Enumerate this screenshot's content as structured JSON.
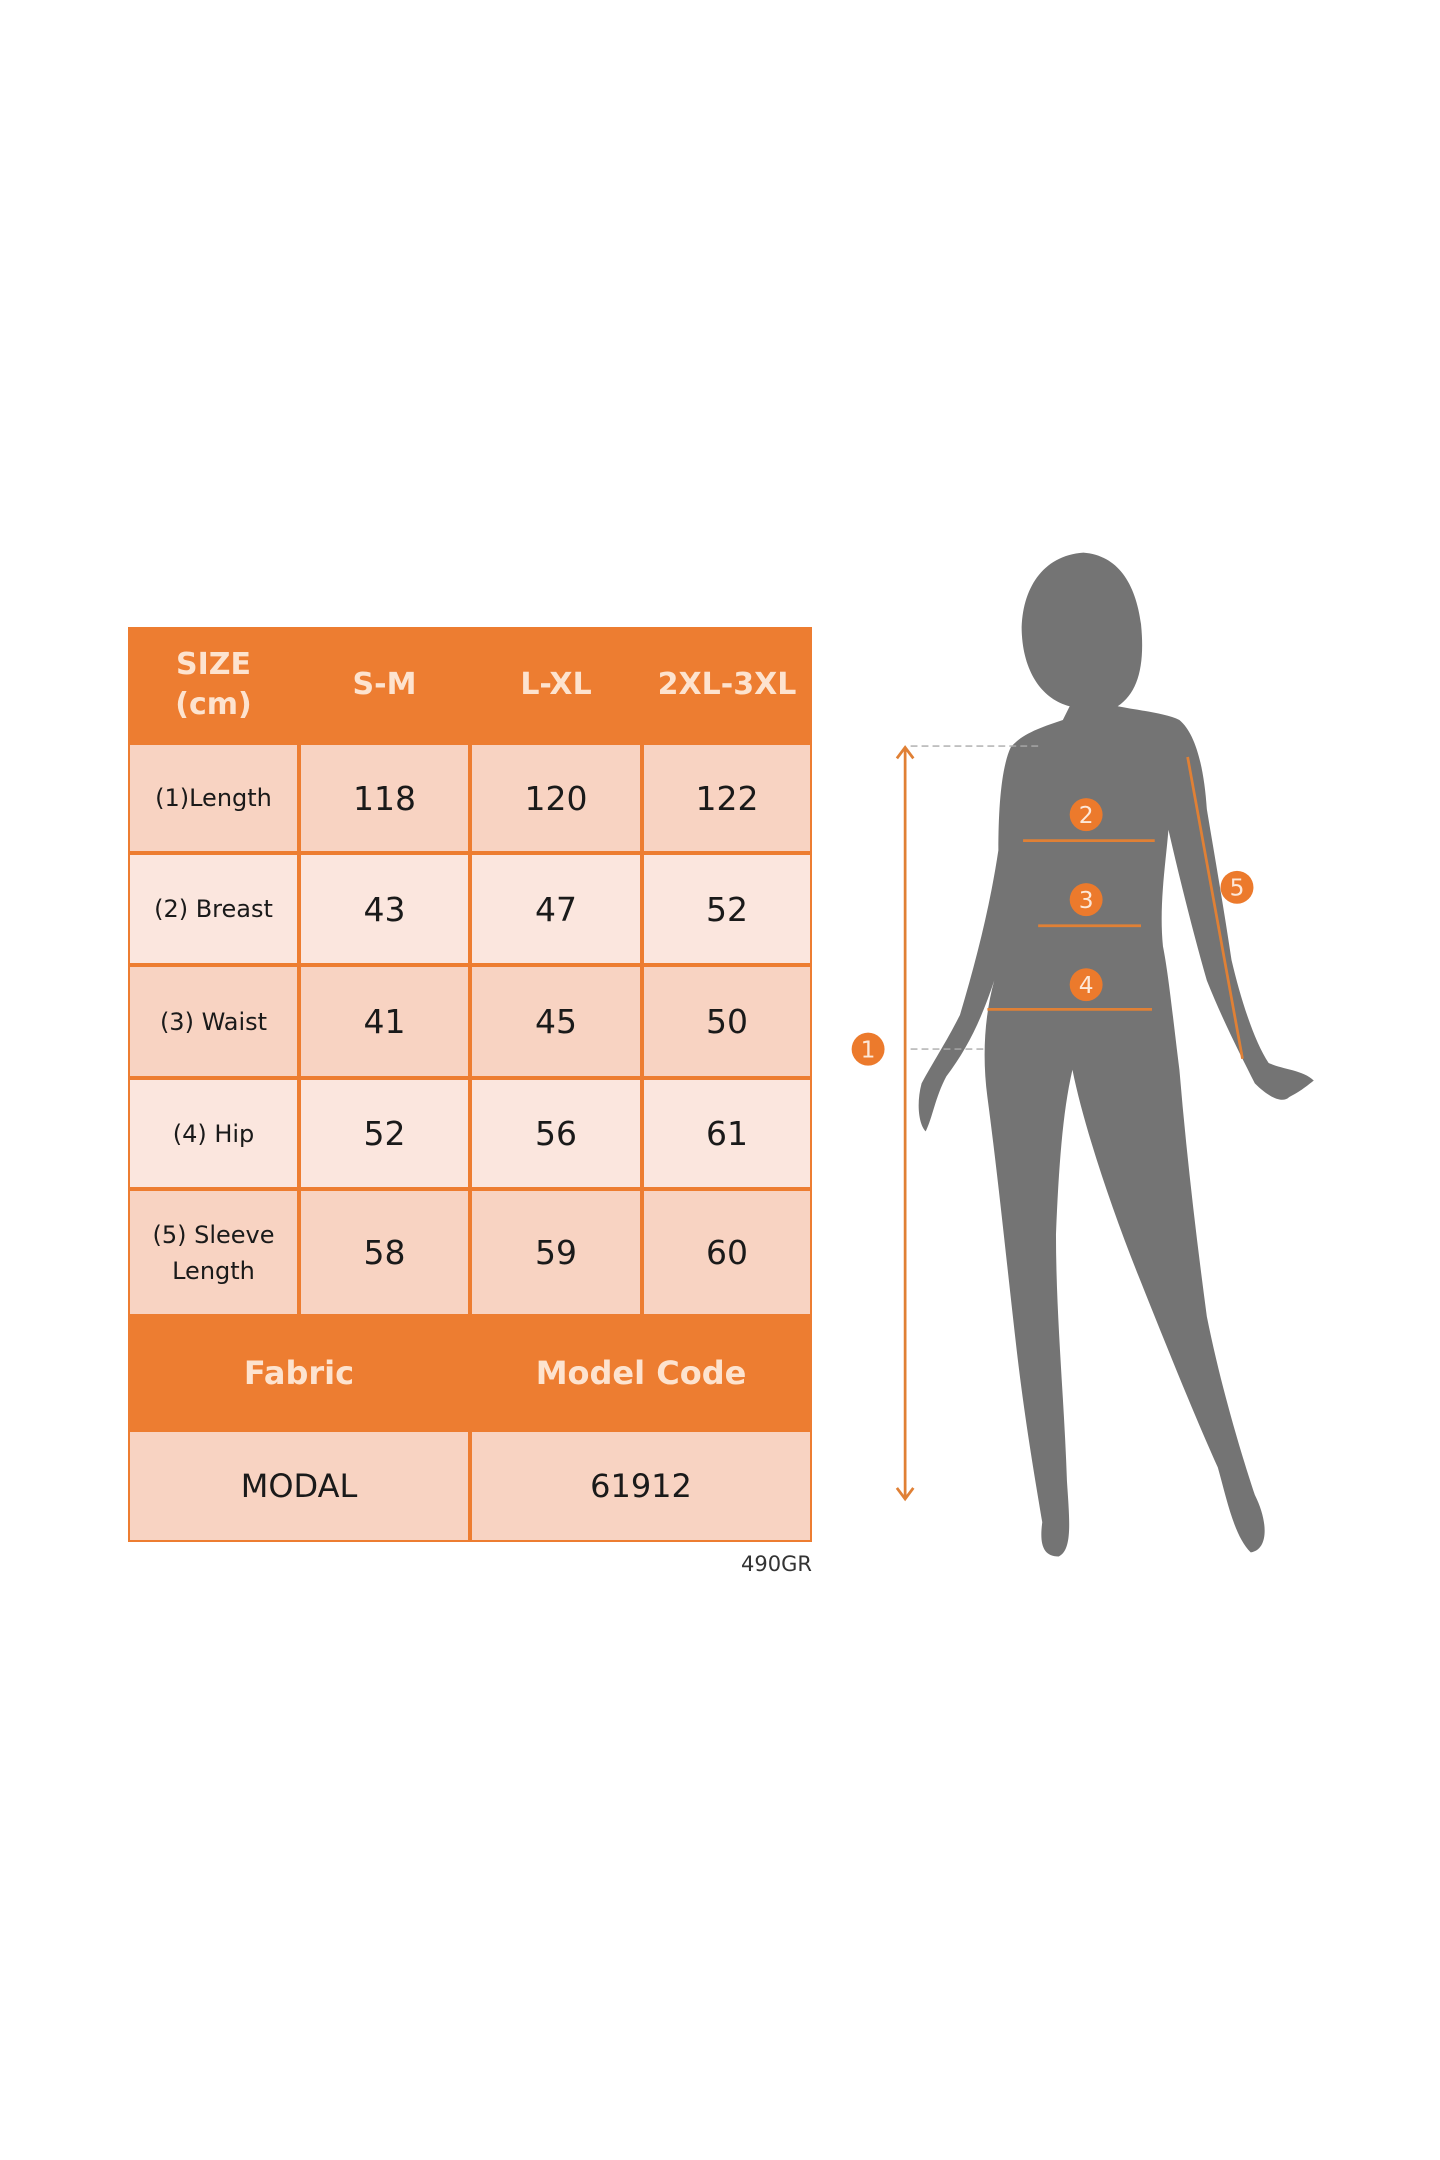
{
  "size_chart": {
    "header": [
      "SIZE\n(cm)",
      "S-M",
      "L-XL",
      "2XL-3XL"
    ],
    "header_label_line1": "SIZE",
    "header_label_line2": "(cm)",
    "sizes": [
      "S-M",
      "L-XL",
      "2XL-3XL"
    ],
    "rows": [
      {
        "label": "(1)Length",
        "values": [
          "118",
          "120",
          "122"
        ]
      },
      {
        "label": "(2) Breast",
        "values": [
          "43",
          "47",
          "52"
        ]
      },
      {
        "label": "(3) Waist",
        "values": [
          "41",
          "45",
          "50"
        ]
      },
      {
        "label": "(4) Hip",
        "values": [
          "52",
          "56",
          "61"
        ]
      },
      {
        "label_line1": "(5) Sleeve",
        "label_line2": "Length",
        "values": [
          "58",
          "59",
          "60"
        ]
      }
    ],
    "fabric_label": "Fabric",
    "model_code_label": "Model Code",
    "fabric_value": "MODAL",
    "model_code_value": "61912"
  },
  "product_code": "490GR",
  "figure": {
    "markers": [
      "1",
      "2",
      "3",
      "4",
      "5"
    ]
  },
  "colors": {
    "accent": "#ed7d31",
    "cell_dark": "#f8d3c2",
    "cell_light": "#fbe6de",
    "silhouette": "#747474"
  }
}
